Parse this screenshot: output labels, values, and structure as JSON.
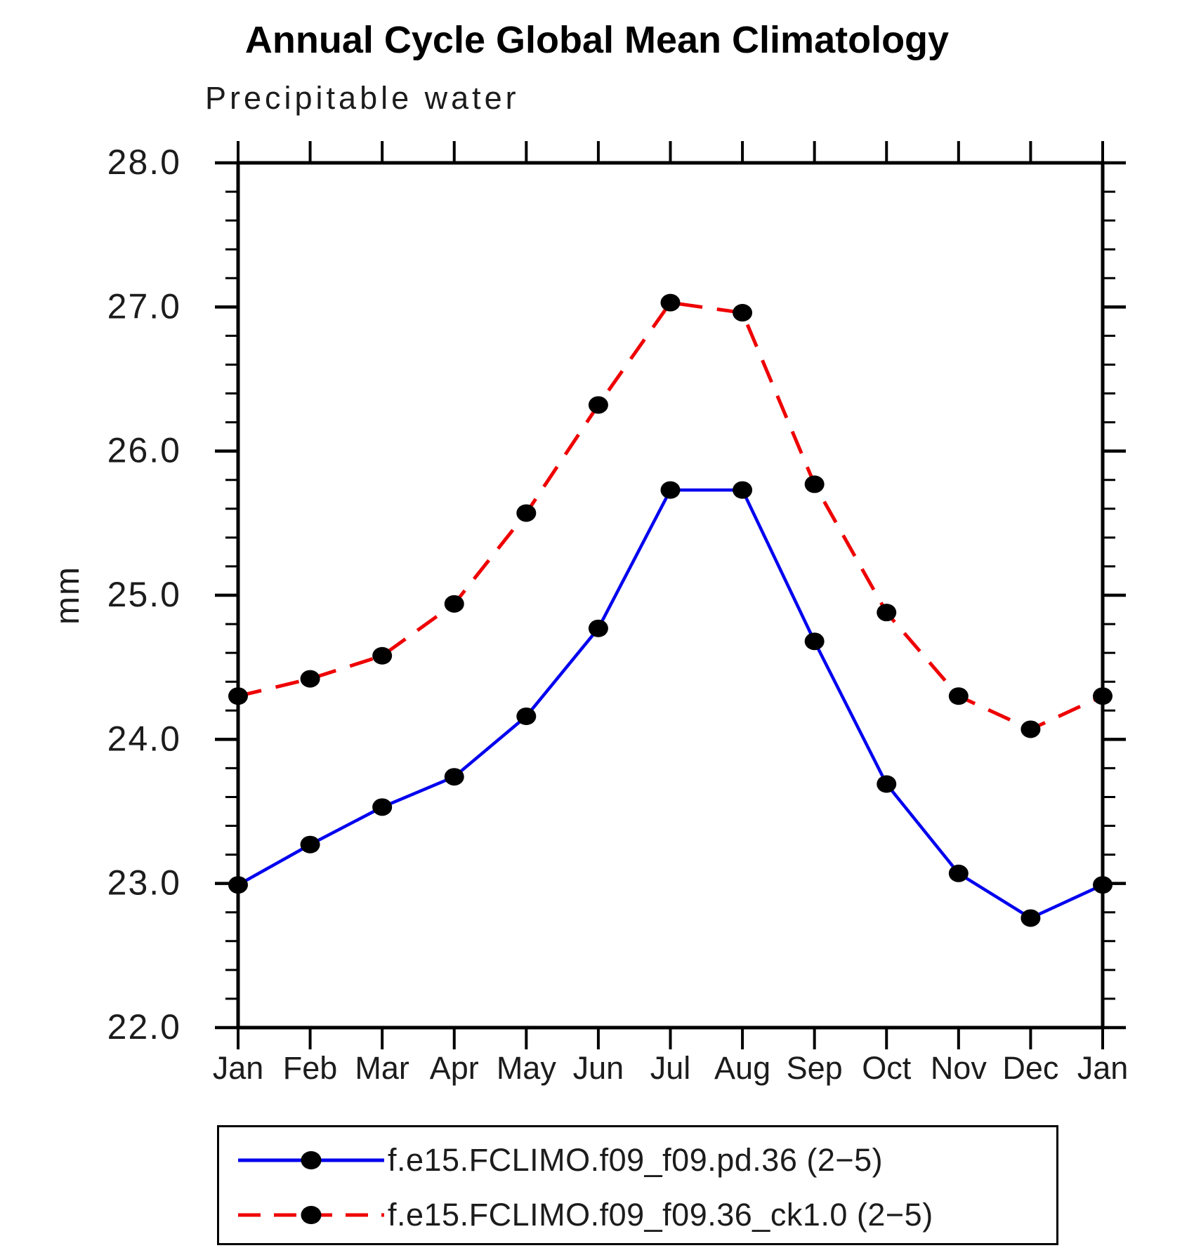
{
  "title": "Annual Cycle Global Mean Climatology",
  "subtitle": "Precipitable water",
  "y_axis": {
    "label": "mm",
    "min": 22.0,
    "max": 28.0,
    "major_step": 1.0,
    "minor_step": 0.2,
    "tick_labels": [
      "22.0",
      "23.0",
      "24.0",
      "25.0",
      "26.0",
      "27.0",
      "28.0"
    ]
  },
  "x_axis": {
    "tick_labels": [
      "Jan",
      "Feb",
      "Mar",
      "Apr",
      "May",
      "Jun",
      "Jul",
      "Aug",
      "Sep",
      "Oct",
      "Nov",
      "Dec",
      "Jan"
    ]
  },
  "legend": {
    "entries": [
      {
        "label": "f.e15.FCLIMO.f09_f09.pd.36 (2−5)",
        "color": "#0000ee",
        "style": "solid",
        "marker_color": "#000000"
      },
      {
        "label": "f.e15.FCLIMO.f09_f09.36_ck1.0 (2−5)",
        "color": "#ee0000",
        "style": "dashed",
        "marker_color": "#000000"
      }
    ]
  },
  "chart_data": {
    "type": "line",
    "x": [
      "Jan",
      "Feb",
      "Mar",
      "Apr",
      "May",
      "Jun",
      "Jul",
      "Aug",
      "Sep",
      "Oct",
      "Nov",
      "Dec",
      "Jan"
    ],
    "series": [
      {
        "name": "f.e15.FCLIMO.f09_f09.pd.36 (2−5)",
        "color": "#0000ee",
        "line_style": "solid",
        "marker": "filled-circle",
        "values": [
          22.99,
          23.27,
          23.53,
          23.74,
          24.16,
          24.77,
          25.73,
          25.73,
          24.68,
          23.69,
          23.07,
          22.76,
          22.99
        ]
      },
      {
        "name": "f.e15.FCLIMO.f09_f09.36_ck1.0 (2−5)",
        "color": "#ee0000",
        "line_style": "dashed",
        "marker": "filled-circle",
        "values": [
          24.3,
          24.42,
          24.58,
          24.94,
          25.57,
          26.32,
          27.03,
          26.96,
          25.77,
          24.88,
          24.3,
          24.07,
          24.3
        ]
      }
    ],
    "title": "Annual Cycle Global Mean Climatology",
    "subtitle": "Precipitable water",
    "xlabel": "",
    "ylabel": "mm",
    "ylim": [
      22.0,
      28.0
    ],
    "grid": false,
    "legend_position": "bottom"
  }
}
